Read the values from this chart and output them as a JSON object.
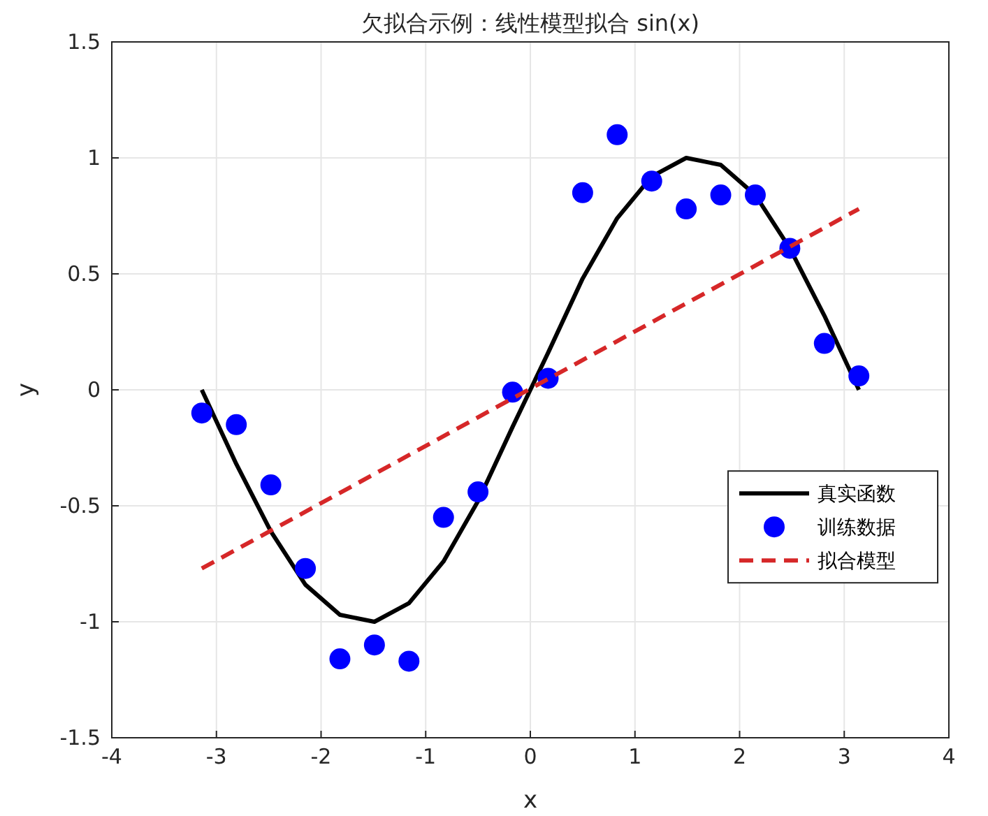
{
  "chart_data": {
    "type": "line",
    "title": "欠拟合示例：线性模型拟合 sin(x)",
    "xlabel": "x",
    "ylabel": "y",
    "xlim": [
      -4,
      4
    ],
    "xticks": [
      -4,
      -3,
      -2,
      -1,
      0,
      1,
      2,
      3,
      4
    ],
    "ylim": [
      -1.5,
      1.5
    ],
    "yticks": [
      -1.5,
      -1,
      -0.5,
      0,
      0.5,
      1,
      1.5
    ],
    "grid": true,
    "legend": "right",
    "series": [
      {
        "name": "真实函数",
        "type": "line",
        "color": "#000000",
        "line_style": "solid",
        "marker": "none",
        "x": [
          -3.14,
          -2.81,
          -2.48,
          -2.15,
          -1.82,
          -1.49,
          -1.16,
          -0.83,
          -0.5,
          -0.17,
          0.17,
          0.5,
          0.83,
          1.16,
          1.49,
          1.82,
          2.15,
          2.48,
          2.81,
          3.14
        ],
        "values": [
          0,
          -0.32,
          -0.61,
          -0.84,
          -0.97,
          -1.0,
          -0.92,
          -0.74,
          -0.48,
          -0.16,
          0.16,
          0.48,
          0.74,
          0.92,
          1.0,
          0.97,
          0.84,
          0.61,
          0.32,
          0
        ]
      },
      {
        "name": "训练数据",
        "type": "scatter",
        "color": "#0000ff",
        "marker": "circle",
        "x": [
          -3.14,
          -2.81,
          -2.48,
          -2.15,
          -1.82,
          -1.49,
          -1.16,
          -0.83,
          -0.5,
          -0.17,
          0.17,
          0.5,
          0.83,
          1.16,
          1.49,
          1.82,
          2.15,
          2.48,
          2.81,
          3.14
        ],
        "values": [
          -0.1,
          -0.15,
          -0.41,
          -0.77,
          -1.16,
          -1.1,
          -1.17,
          -0.55,
          -0.44,
          -0.01,
          0.05,
          0.85,
          1.1,
          0.9,
          0.78,
          0.84,
          0.84,
          0.61,
          0.2,
          0.06
        ]
      },
      {
        "name": "拟合模型",
        "type": "line",
        "color": "#d62728",
        "line_style": "dashed",
        "marker": "none",
        "x": [
          -3.14,
          3.14
        ],
        "values": [
          -0.77,
          0.78
        ]
      }
    ]
  }
}
